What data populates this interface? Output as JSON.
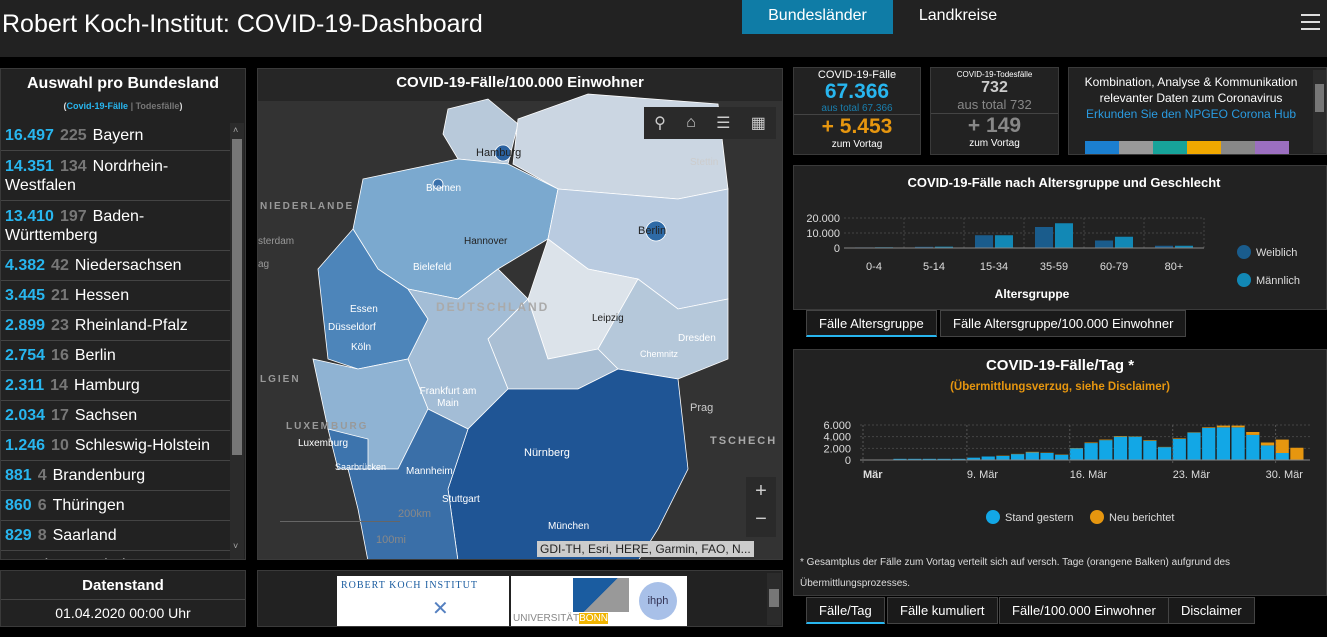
{
  "header": {
    "title": "Robert Koch-Institut: COVID-19-Dashboard",
    "tabs": [
      {
        "label": "Bundesländer",
        "active": true
      },
      {
        "label": "Landkreise",
        "active": false
      }
    ]
  },
  "list": {
    "title": "Auswahl pro Bundesland",
    "subtitle_open": "(",
    "subtitle_cases": "Covid-19-Fälle",
    "subtitle_sep": " | ",
    "subtitle_deaths": "Todesfälle",
    "subtitle_close": ")",
    "items": [
      {
        "cases": "16.497",
        "deaths": "225",
        "name": "Bayern"
      },
      {
        "cases": "14.351",
        "deaths": "134",
        "name": "Nordrhein-Westfalen"
      },
      {
        "cases": "13.410",
        "deaths": "197",
        "name": "Baden-Württemberg"
      },
      {
        "cases": "4.382",
        "deaths": "42",
        "name": "Niedersachsen"
      },
      {
        "cases": "3.445",
        "deaths": "21",
        "name": "Hessen"
      },
      {
        "cases": "2.899",
        "deaths": "23",
        "name": "Rheinland-Pfalz"
      },
      {
        "cases": "2.754",
        "deaths": "16",
        "name": "Berlin"
      },
      {
        "cases": "2.311",
        "deaths": "14",
        "name": "Hamburg"
      },
      {
        "cases": "2.034",
        "deaths": "17",
        "name": "Sachsen"
      },
      {
        "cases": "1.246",
        "deaths": "10",
        "name": "Schleswig-Holstein"
      },
      {
        "cases": "881",
        "deaths": "4",
        "name": "Brandenburg"
      },
      {
        "cases": "860",
        "deaths": "6",
        "name": "Thüringen"
      },
      {
        "cases": "829",
        "deaths": "8",
        "name": "Saarland"
      },
      {
        "cases": "",
        "deaths": "",
        "name": "Sachsen-Anhalt"
      }
    ]
  },
  "datenstand": {
    "title": "Datenstand",
    "value": "01.04.2020 00:00 Uhr"
  },
  "map": {
    "title": "COVID-19-Fälle/100.000 Einwohner",
    "attribution": "GDI-TH, Esri, HERE, Garmin, FAO, N...",
    "scale_km": "200km",
    "scale_mi": "100mi",
    "zoom_in": "+",
    "zoom_out": "−",
    "labels": [
      "Hamburg",
      "Bremen",
      "Stettin",
      "Berlin",
      "Hannover",
      "Bielefeld",
      "NIEDERLANDE",
      "sterdam",
      "ag",
      "DEUTSCHLAND",
      "Essen",
      "Düsseldorf",
      "Köln",
      "Leipzig",
      "Dresden",
      "Chemnitz",
      "LGIEN",
      "Frankfurt am Main",
      "LUXEMBURG",
      "Luxemburg",
      "Saarbrücken",
      "Mannheim",
      "Nürnberg",
      "Prag",
      "TSCHECH",
      "Stuttgart",
      "München"
    ]
  },
  "logos": {
    "rki": "ROBERT KOCH INSTITUT",
    "bonn_a": "UNIVERSITÄT",
    "bonn_b": "BONN",
    "ihph": "ihph"
  },
  "cards": {
    "cases": {
      "label": "COVID-19-Fälle",
      "value": "67.366",
      "total": "aus total 67.366",
      "delta": "+ 5.453",
      "delta_label": "zum Vortag"
    },
    "deaths": {
      "label": "COVID-19-Todesfälle",
      "value": "732",
      "total": "aus total 732",
      "delta": "+ 149",
      "delta_label": "zum Vortag"
    },
    "info": {
      "line1": "Kombination, Analyse & Kommunikation",
      "line2": "relevanter Daten zum Coronavirus",
      "link": "Erkunden Sie den NPGEO Corona Hub"
    }
  },
  "age_tabs": [
    {
      "label": "Fälle Altersgruppe",
      "active": true
    },
    {
      "label": "Fälle Altersgruppe/100.000 Einwohner",
      "active": false
    }
  ],
  "day_tabs": [
    {
      "label": "Fälle/Tag",
      "active": true
    },
    {
      "label": "Fälle kumuliert",
      "active": false
    },
    {
      "label": "Fälle/100.000 Einwohner",
      "active": false
    },
    {
      "label": "Disclaimer",
      "active": false
    }
  ],
  "footnote": "* Gesamtplus der Fälle zum Vortag verteilt sich auf versch. Tage (orangene Balken) aufgrund des Übermittlungsprozesses.",
  "chart_data": [
    {
      "type": "bar",
      "title": "COVID-19-Fälle nach Altersgruppe und Geschlecht",
      "xlabel": "Altersgruppe",
      "ylabel": "",
      "categories": [
        "0-4",
        "5-14",
        "15-34",
        "35-59",
        "60-79",
        "80+"
      ],
      "yticks": [
        "20.000",
        "10.000",
        "0"
      ],
      "ylim": [
        0,
        20000
      ],
      "legend_position": "right",
      "series": [
        {
          "name": "Weiblich",
          "color": "#1a5c8c",
          "values": [
            400,
            800,
            8500,
            14000,
            5000,
            1500
          ]
        },
        {
          "name": "Männlich",
          "color": "#1288b5",
          "values": [
            500,
            900,
            8500,
            16500,
            7500,
            1500
          ]
        }
      ]
    },
    {
      "type": "bar",
      "stacked": true,
      "title": "COVID-19-Fälle/Tag *",
      "subtitle": "(Übermittlungsverzug, siehe Disclaimer)",
      "xticks": [
        "Mär",
        "9. Mär",
        "16. Mär",
        "23. Mär",
        "30. Mär"
      ],
      "yticks": [
        "6.000",
        "4.000",
        "2.000",
        "0"
      ],
      "ylim": [
        0,
        6000
      ],
      "legend_position": "bottom",
      "x": [
        "2.3",
        "3.3",
        "4.3",
        "5.3",
        "6.3",
        "7.3",
        "8.3",
        "9.3",
        "10.3",
        "11.3",
        "12.3",
        "13.3",
        "14.3",
        "15.3",
        "16.3",
        "17.3",
        "18.3",
        "19.3",
        "20.3",
        "21.3",
        "22.3",
        "23.3",
        "24.3",
        "25.3",
        "26.3",
        "27.3",
        "28.3",
        "29.3",
        "30.3",
        "31.3"
      ],
      "series": [
        {
          "name": "Stand gestern",
          "color": "#12a7e6",
          "values": [
            50,
            50,
            200,
            200,
            200,
            200,
            200,
            400,
            600,
            700,
            1000,
            1300,
            1200,
            900,
            2000,
            2900,
            3400,
            4000,
            4000,
            3300,
            2200,
            3600,
            4700,
            5500,
            5600,
            5600,
            4300,
            2500,
            1200,
            0
          ]
        },
        {
          "name": "Neu berichtet",
          "color": "#e6960f",
          "values": [
            0,
            0,
            0,
            0,
            0,
            0,
            0,
            0,
            0,
            50,
            50,
            100,
            50,
            50,
            50,
            100,
            100,
            100,
            50,
            100,
            50,
            100,
            50,
            100,
            300,
            300,
            500,
            500,
            2300,
            2100
          ]
        }
      ]
    }
  ]
}
